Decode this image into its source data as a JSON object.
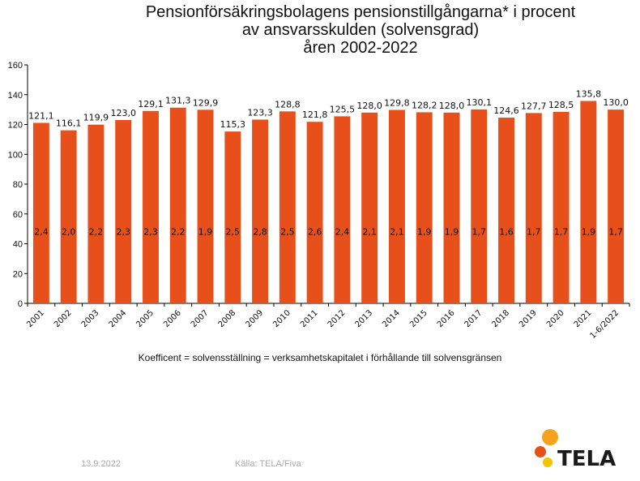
{
  "chart_data": {
    "type": "bar",
    "title_lines": [
      "Pensionförsäkringsbolagens pensionstillgångarna* i procent",
      "av ansvarsskulden (solvensgrad)",
      "åren 2002-2022"
    ],
    "categories": [
      "2001",
      "2002",
      "2003",
      "2004",
      "2005",
      "2006",
      "2007",
      "2008",
      "2009",
      "2010",
      "2011",
      "2012",
      "2013",
      "2014",
      "2015",
      "2016",
      "2017",
      "2018",
      "2019",
      "2020",
      "2021",
      "1-6/2022"
    ],
    "values": [
      121.1,
      116.1,
      119.9,
      123.0,
      129.1,
      131.3,
      129.9,
      115.3,
      123.3,
      128.8,
      121.8,
      125.5,
      128.0,
      129.8,
      128.2,
      128.0,
      130.1,
      124.6,
      127.7,
      128.5,
      135.8,
      130.0
    ],
    "value_labels": [
      "121,1",
      "116,1",
      "119,9",
      "123,0",
      "129,1",
      "131,3",
      "129,9",
      "115,3",
      "123,3",
      "128,8",
      "121,8",
      "125,5",
      "128,0",
      "129,8",
      "128,2",
      "128,0",
      "130,1",
      "124,6",
      "127,7",
      "128,5",
      "135,8",
      "130,0"
    ],
    "inner_labels": [
      "2,4",
      "2,0",
      "2,2",
      "2,3",
      "2,3",
      "2,2",
      "1,9",
      "2,5",
      "2,8",
      "2,5",
      "2,6",
      "2,4",
      "2,1",
      "2,1",
      "1,9",
      "1,9",
      "1,7",
      "1,6",
      "1,7",
      "1,7",
      "1,9",
      "1,7"
    ],
    "ylim": [
      0,
      160
    ],
    "yticks": [
      "0",
      "20",
      "40",
      "60",
      "80",
      "100",
      "120",
      "140",
      "160"
    ],
    "grid": false,
    "bar_color": "#e8501b",
    "note": "Koefficent = solvensställning = verksamhetskapitalet i förhållande till solvensgränsen"
  },
  "footer": {
    "date": "13.9.2022",
    "source": "Källa: TELA/Fiva"
  },
  "logo": {
    "text": "TELA",
    "colors": [
      "#f7a21b",
      "#e8501b",
      "#f5c400"
    ]
  }
}
